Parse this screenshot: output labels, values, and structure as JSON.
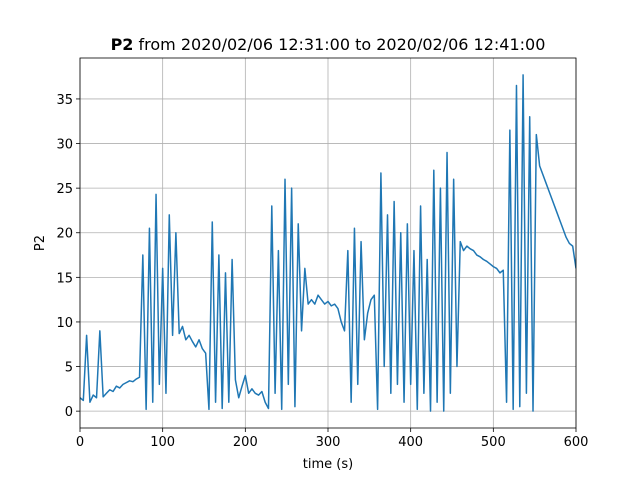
{
  "chart_data": {
    "type": "line",
    "title": {
      "variable": "P2",
      "text": "from 2020/02/06 12:31:00 to 2020/02/06 12:41:00"
    },
    "xlabel": "time (s)",
    "ylabel": "P2",
    "x": [
      0,
      4,
      8,
      12,
      16,
      20,
      24,
      28,
      32,
      36,
      40,
      44,
      48,
      52,
      56,
      60,
      64,
      68,
      72,
      76,
      80,
      84,
      88,
      92,
      96,
      100,
      104,
      108,
      112,
      116,
      120,
      124,
      128,
      132,
      136,
      140,
      144,
      148,
      152,
      156,
      160,
      164,
      168,
      172,
      176,
      180,
      184,
      188,
      192,
      196,
      200,
      204,
      208,
      212,
      216,
      220,
      224,
      228,
      232,
      236,
      240,
      244,
      248,
      252,
      256,
      260,
      264,
      268,
      272,
      276,
      280,
      284,
      288,
      292,
      296,
      300,
      304,
      308,
      312,
      316,
      320,
      324,
      328,
      332,
      336,
      340,
      344,
      348,
      352,
      356,
      360,
      364,
      368,
      372,
      376,
      380,
      384,
      388,
      392,
      396,
      400,
      404,
      408,
      412,
      416,
      420,
      424,
      428,
      432,
      436,
      440,
      444,
      448,
      452,
      456,
      460,
      464,
      468,
      472,
      476,
      480,
      484,
      488,
      492,
      496,
      500,
      504,
      508,
      512,
      516,
      520,
      524,
      528,
      532,
      536,
      540,
      544,
      548,
      552,
      556,
      560,
      564,
      568,
      572,
      576,
      580,
      584,
      588,
      592,
      596,
      600
    ],
    "series": [
      {
        "name": "P2",
        "color": "#1f77b4",
        "values": [
          1.5,
          1.2,
          8.5,
          1.0,
          1.8,
          1.5,
          9.0,
          1.6,
          2.0,
          2.4,
          2.2,
          2.8,
          2.6,
          3.0,
          3.2,
          3.4,
          3.3,
          3.6,
          3.8,
          17.5,
          0.2,
          20.5,
          1.0,
          24.3,
          3.0,
          16,
          2,
          22,
          8.5,
          20,
          8.7,
          9.5,
          8.0,
          8.5,
          7.8,
          7.2,
          8.0,
          7.0,
          6.5,
          0.2,
          21.2,
          1.0,
          17.5,
          0.3,
          15.5,
          1.0,
          17,
          3.5,
          1.5,
          2.8,
          4,
          2.0,
          2.5,
          2.0,
          1.8,
          2.2,
          1.0,
          0.3,
          23,
          2.0,
          18,
          0.2,
          26,
          3,
          25,
          0.5,
          21,
          9,
          16,
          12,
          12.5,
          12.0,
          13,
          12.5,
          12,
          12.3,
          11.8,
          12.0,
          11.5,
          10,
          9.0,
          18,
          1.0,
          20.5,
          3,
          19,
          8,
          11,
          12.5,
          13,
          0.2,
          26.7,
          5,
          22,
          2,
          23.5,
          3,
          20,
          1.0,
          21,
          3,
          18,
          0.2,
          23,
          2,
          17,
          0,
          27,
          1.0,
          25,
          0,
          29,
          2,
          26,
          5,
          19,
          18,
          18.5,
          18.2,
          18,
          17.5,
          17.3,
          17,
          16.8,
          16.5,
          16.2,
          16.0,
          15.5,
          15.8,
          1.0,
          31.5,
          0.2,
          36.5,
          0.5,
          37.7,
          2,
          33,
          0,
          31,
          27.5,
          26.5,
          25.5,
          24.5,
          23.5,
          22.5,
          21.5,
          20.5,
          19.5,
          18.8,
          18.5,
          16
        ]
      }
    ],
    "xlim": [
      0,
      600
    ],
    "xticks": [
      0,
      100,
      200,
      300,
      400,
      500,
      600
    ],
    "ylim": [
      -1.89,
      39.59
    ],
    "yticks": [
      0,
      5,
      10,
      15,
      20,
      25,
      30,
      35
    ],
    "grid": true
  }
}
